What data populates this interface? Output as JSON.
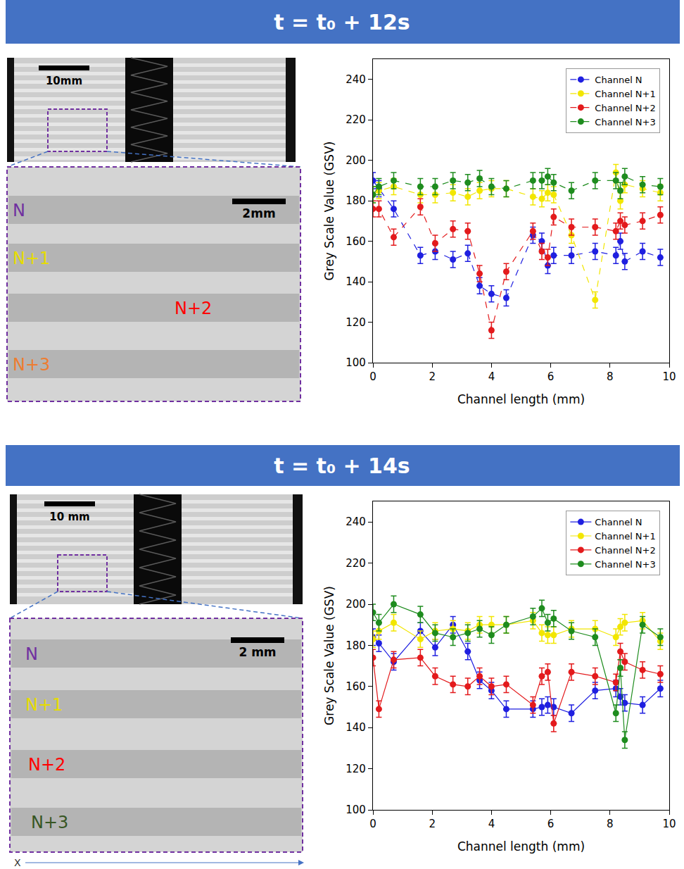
{
  "panels": [
    {
      "header": "t = t₀ + 12s",
      "overview_scale": "10mm",
      "zoom_scale": "2mm",
      "channel_labels": [
        {
          "text": "N",
          "color": "#7030a0"
        },
        {
          "text": "N+1",
          "color": "#e6dc00"
        },
        {
          "text": "N+2",
          "color": "#ff0000"
        },
        {
          "text": "N+3",
          "color": "#ed7d31"
        }
      ]
    },
    {
      "header": "t = t₀ + 14s",
      "overview_scale": "10 mm",
      "zoom_scale": "2 mm",
      "channel_labels": [
        {
          "text": "N",
          "color": "#7030a0"
        },
        {
          "text": "N+1",
          "color": "#e6dc00"
        },
        {
          "text": "N+2",
          "color": "#ff0000"
        },
        {
          "text": "N+3",
          "color": "#375623"
        }
      ]
    }
  ],
  "x_direction_label": "X",
  "chart_data": [
    {
      "type": "scatter",
      "x_label": "Channel length (mm)",
      "y_label": "Grey Scale Value (GSV)",
      "x": [
        0,
        0.2,
        0.7,
        1.6,
        2.1,
        2.7,
        3.2,
        3.6,
        4.0,
        4.5,
        5.4,
        5.7,
        5.9,
        6.1,
        6.7,
        7.5,
        8.2,
        8.35,
        8.5,
        9.1,
        9.7
      ],
      "xlim": [
        0,
        10
      ],
      "xticks": [
        0,
        2,
        4,
        6,
        8,
        10
      ],
      "ylim": [
        100,
        250
      ],
      "yticks": [
        100,
        120,
        140,
        160,
        180,
        200,
        220,
        240
      ],
      "legend": "top right",
      "line_style": "dashed",
      "marker": "circle",
      "series": [
        {
          "name": "Channel N",
          "color": "#1f1fe0",
          "error": 4,
          "values": [
            190,
            186,
            176,
            153,
            155,
            151,
            154,
            138,
            134,
            132,
            163,
            160,
            148,
            153,
            153,
            155,
            153,
            160,
            150,
            155,
            152
          ]
        },
        {
          "name": "Channel N+1",
          "color": "#f2e600",
          "error": 4,
          "values": [
            183,
            185,
            187,
            183,
            183,
            184,
            182,
            185,
            186,
            186,
            182,
            181,
            184,
            183,
            163,
            131,
            194,
            180,
            188,
            186,
            184
          ]
        },
        {
          "name": "Channel N+2",
          "color": "#e31a1c",
          "error": 4,
          "values": [
            176,
            176,
            162,
            177,
            159,
            166,
            165,
            144,
            116,
            145,
            165,
            155,
            152,
            172,
            167,
            167,
            165,
            170,
            168,
            170,
            173
          ]
        },
        {
          "name": "Channel N+3",
          "color": "#1e8c1e",
          "error": 4,
          "values": [
            183,
            187,
            190,
            187,
            187,
            190,
            189,
            191,
            187,
            186,
            190,
            190,
            192,
            189,
            185,
            190,
            190,
            185,
            192,
            188,
            187
          ]
        }
      ]
    },
    {
      "type": "scatter",
      "x_label": "Channel length (mm)",
      "y_label": "Grey Scale Value (GSV)",
      "x": [
        0,
        0.2,
        0.7,
        1.6,
        2.1,
        2.7,
        3.2,
        3.6,
        4.0,
        4.5,
        5.4,
        5.7,
        5.9,
        6.1,
        6.7,
        7.5,
        8.2,
        8.35,
        8.5,
        9.1,
        9.7
      ],
      "xlim": [
        0,
        10
      ],
      "xticks": [
        0,
        2,
        4,
        6,
        8,
        10
      ],
      "ylim": [
        100,
        250
      ],
      "yticks": [
        100,
        120,
        140,
        160,
        180,
        200,
        220,
        240
      ],
      "legend": "top right",
      "line_style": "solid",
      "marker": "circle",
      "series": [
        {
          "name": "Channel N",
          "color": "#1f1fe0",
          "error": 4,
          "values": [
            184,
            181,
            172,
            187,
            179,
            190,
            177,
            163,
            158,
            149,
            149,
            150,
            151,
            150,
            147,
            158,
            159,
            155,
            152,
            151,
            159
          ]
        },
        {
          "name": "Channel N+1",
          "color": "#f2e600",
          "error": 4,
          "values": [
            183,
            187,
            191,
            183,
            187,
            188,
            187,
            190,
            190,
            190,
            192,
            186,
            185,
            185,
            188,
            188,
            184,
            189,
            191,
            192,
            182
          ]
        },
        {
          "name": "Channel N+2",
          "color": "#e31a1c",
          "error": 4,
          "values": [
            174,
            149,
            173,
            174,
            165,
            161,
            160,
            165,
            160,
            161,
            151,
            165,
            167,
            142,
            167,
            165,
            162,
            177,
            172,
            168,
            166
          ]
        },
        {
          "name": "Channel N+3",
          "color": "#1e8c1e",
          "error": 4,
          "values": [
            196,
            191,
            200,
            195,
            186,
            184,
            186,
            188,
            185,
            190,
            194,
            198,
            191,
            193,
            187,
            184,
            147,
            169,
            134,
            190,
            184
          ]
        }
      ]
    }
  ]
}
